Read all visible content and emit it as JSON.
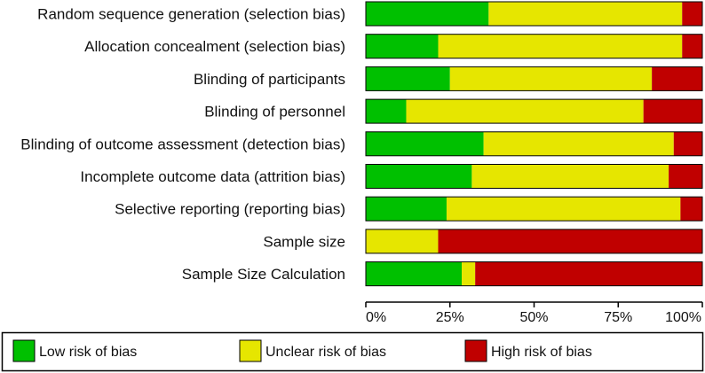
{
  "chart_data": {
    "type": "bar",
    "orientation": "horizontal",
    "stacked": true,
    "title": "",
    "xlabel": "",
    "ylabel": "",
    "xlim": [
      0,
      100
    ],
    "categories": [
      "Random sequence generation (selection bias)",
      "Allocation concealment (selection bias)",
      "Blinding of participants",
      "Blinding of personnel",
      "Blinding of outcome assessment (detection bias)",
      "Incomplete outcome data (attrition bias)",
      "Selective reporting (reporting bias)",
      "Sample size",
      "Sample Size Calculation"
    ],
    "series": [
      {
        "name": "Low risk of bias",
        "color": "#00c000",
        "values": [
          36.5,
          21.5,
          25,
          12,
          35,
          31.5,
          24,
          0,
          28.5
        ]
      },
      {
        "name": "Unclear risk of bias",
        "color": "#e6e600",
        "values": [
          57.5,
          72.5,
          60,
          70.5,
          56.5,
          58.5,
          69.5,
          21.5,
          4
        ]
      },
      {
        "name": "High risk of bias",
        "color": "#c00000",
        "values": [
          6,
          6,
          15,
          17.5,
          8.5,
          10,
          6.5,
          78.5,
          67.5
        ]
      }
    ],
    "x_ticks": [
      "0%",
      "25%",
      "50%",
      "75%",
      "100%"
    ],
    "legend_position": "bottom"
  }
}
